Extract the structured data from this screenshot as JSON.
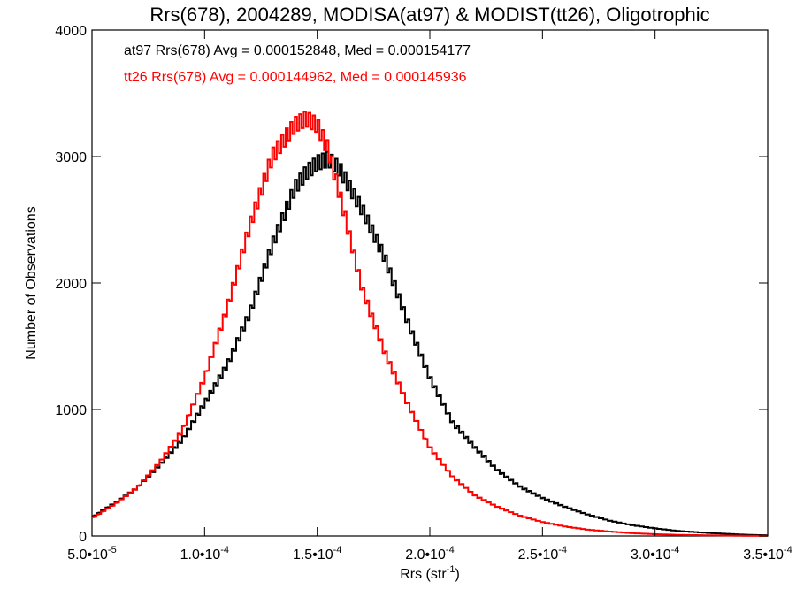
{
  "chart_data": {
    "type": "line",
    "title": "Rrs(678), 2004289, MODISA(at97) & MODIST(tt26), Oligotrophic",
    "xlabel_main": "Rrs (str",
    "xlabel_sup": "-1",
    "xlabel_tail": ")",
    "ylabel": "Number of Observations",
    "xlim": [
      5e-05,
      0.00035
    ],
    "ylim": [
      0,
      4000
    ],
    "grid": false,
    "x_ticks": [
      5e-05,
      0.0001,
      0.00015,
      0.0002,
      0.00025,
      0.0003,
      0.00035
    ],
    "x_tick_labels": [
      {
        "mant": "5.0•10",
        "exp": "-5"
      },
      {
        "mant": "1.0•10",
        "exp": "-4"
      },
      {
        "mant": "1.5•10",
        "exp": "-4"
      },
      {
        "mant": "2.0•10",
        "exp": "-4"
      },
      {
        "mant": "2.5•10",
        "exp": "-4"
      },
      {
        "mant": "3.0•10",
        "exp": "-4"
      },
      {
        "mant": "3.5•10",
        "exp": "-4"
      }
    ],
    "y_ticks": [
      0,
      1000,
      2000,
      3000,
      4000
    ],
    "y_tick_labels": [
      "0",
      "1000",
      "2000",
      "3000",
      "4000"
    ],
    "annotations": [
      {
        "text": "at97 Rrs(678) Avg = 0.000152848, Med = 0.000154177",
        "color": "#000000"
      },
      {
        "text": "tt26 Rrs(678) Avg = 0.000144962, Med = 0.000145936",
        "color": "#ff0000"
      }
    ],
    "series": [
      {
        "color": "#000000",
        "x": [
          5e-05,
          6e-05,
          7e-05,
          8e-05,
          9e-05,
          0.0001,
          0.00011,
          0.00012,
          0.00013,
          0.00014,
          0.000145,
          0.00015,
          0.000155,
          0.00016,
          0.00017,
          0.00018,
          0.00019,
          0.0002,
          0.00021,
          0.00022,
          0.00023,
          0.00024,
          0.00025,
          0.00026,
          0.00027,
          0.00028,
          0.00029,
          0.0003,
          0.00031,
          0.00032,
          0.00033,
          0.00034,
          0.00035
        ],
        "y": [
          150,
          260,
          380,
          560,
          760,
          1050,
          1350,
          1760,
          2300,
          2750,
          2870,
          2950,
          2980,
          2900,
          2580,
          2200,
          1700,
          1250,
          900,
          700,
          520,
          390,
          300,
          230,
          170,
          120,
          85,
          60,
          40,
          28,
          18,
          10,
          5
        ]
      },
      {
        "color": "#ff0000",
        "x": [
          5e-05,
          6e-05,
          7e-05,
          8e-05,
          9e-05,
          0.0001,
          0.00011,
          0.00012,
          0.00013,
          0.00014,
          0.000145,
          0.00015,
          0.000155,
          0.00016,
          0.00017,
          0.00018,
          0.00019,
          0.0002,
          0.00021,
          0.00022,
          0.00023,
          0.00024,
          0.00025,
          0.00026,
          0.00027,
          0.00028,
          0.00029,
          0.0003,
          0.00031,
          0.00032,
          0.00033,
          0.00034,
          0.00035
        ],
        "y": [
          140,
          250,
          380,
          580,
          830,
          1250,
          1800,
          2450,
          3000,
          3250,
          3300,
          3250,
          3050,
          2700,
          1950,
          1450,
          1050,
          700,
          470,
          320,
          230,
          160,
          110,
          75,
          50,
          35,
          22,
          14,
          9,
          6,
          4,
          2,
          1
        ]
      }
    ]
  }
}
